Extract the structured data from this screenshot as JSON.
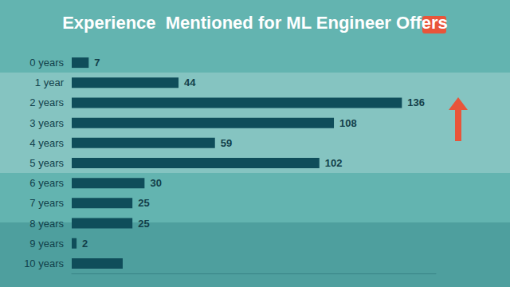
{
  "chart_data": {
    "type": "bar",
    "title": "Experience  Mentioned for ML Engineer Offers",
    "orientation": "horizontal",
    "categories": [
      "0 years",
      "1 year",
      "2 years",
      "3 years",
      "4 years",
      "5 years",
      "6 years",
      "7 years",
      "8 years",
      "9 years",
      "10 years"
    ],
    "values": [
      7,
      44,
      136,
      108,
      59,
      102,
      30,
      25,
      25,
      2,
      21
    ],
    "value_labels": [
      "7",
      "44",
      "136",
      "108",
      "59",
      "102",
      "30",
      "25",
      "25",
      "2",
      null
    ],
    "color": "#0f4d5a",
    "xlim": [
      0,
      150
    ],
    "data_labels": true,
    "tick_labels": "y",
    "grid": false
  }
}
